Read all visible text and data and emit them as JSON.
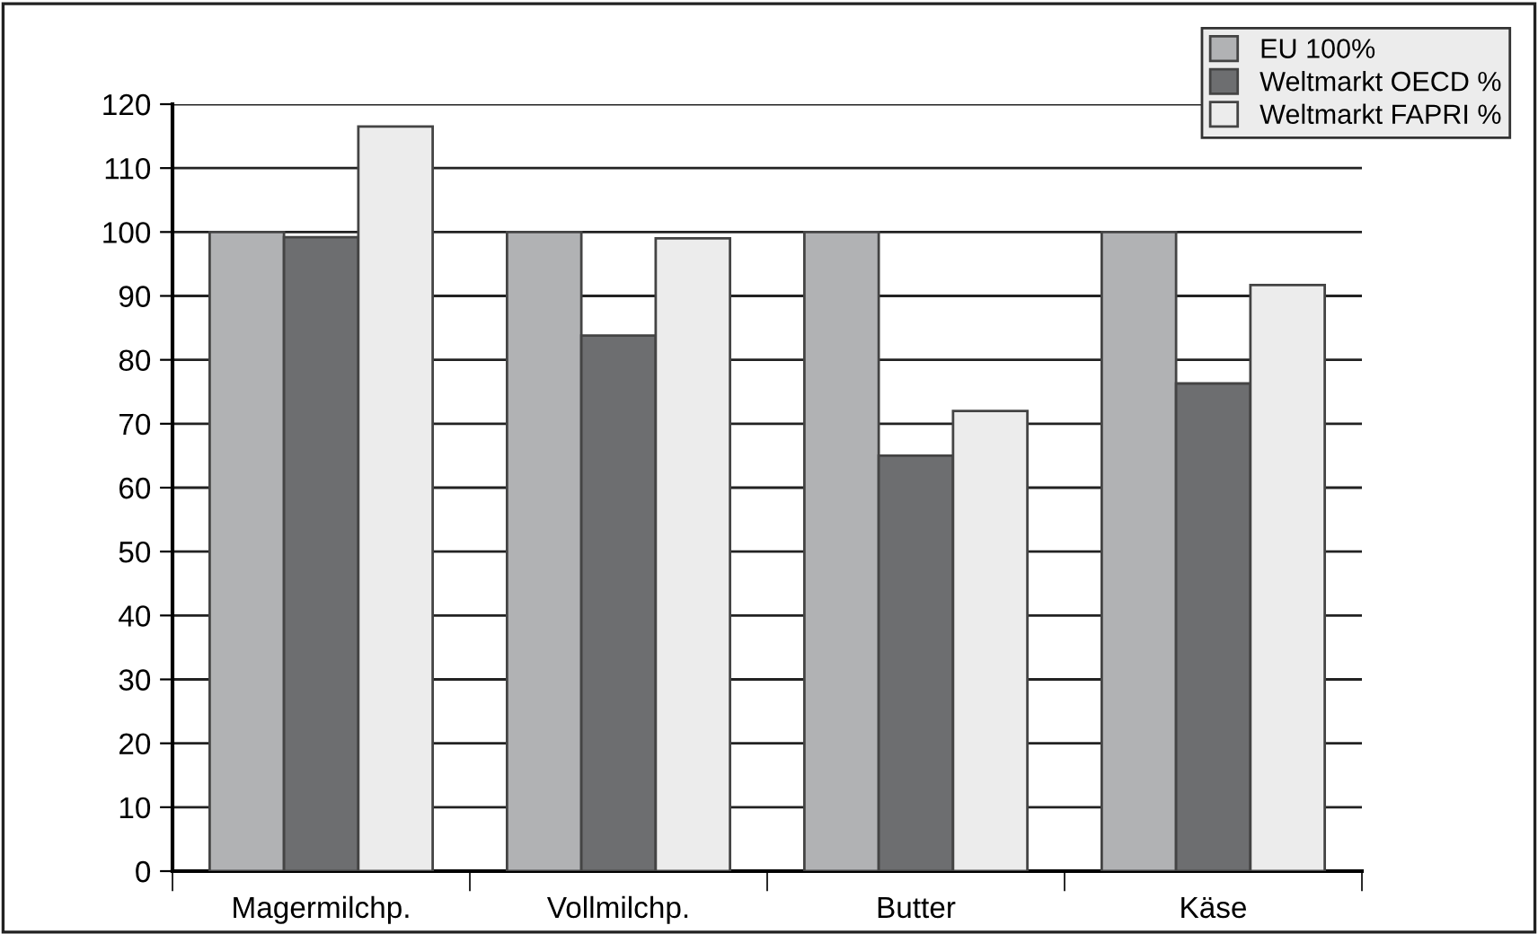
{
  "chart_data": {
    "type": "bar",
    "categories": [
      "Magermilchp.",
      "Vollmilchp.",
      "Butter",
      "Käse"
    ],
    "series": [
      {
        "name": "EU 100%",
        "color": "#b1b2b4",
        "values": [
          100,
          100,
          100,
          100
        ]
      },
      {
        "name": "Weltmarkt OECD %",
        "color": "#6d6e70",
        "values": [
          99.2,
          83.8,
          65,
          76.3
        ]
      },
      {
        "name": "Weltmarkt FAPRI %",
        "color": "#ececec",
        "values": [
          116.5,
          99,
          72,
          91.7
        ]
      }
    ],
    "ylim": [
      0,
      120
    ],
    "yticks": [
      0,
      10,
      20,
      30,
      40,
      50,
      60,
      70,
      80,
      90,
      100,
      110,
      120
    ],
    "grid": "y",
    "legend": "top right"
  }
}
